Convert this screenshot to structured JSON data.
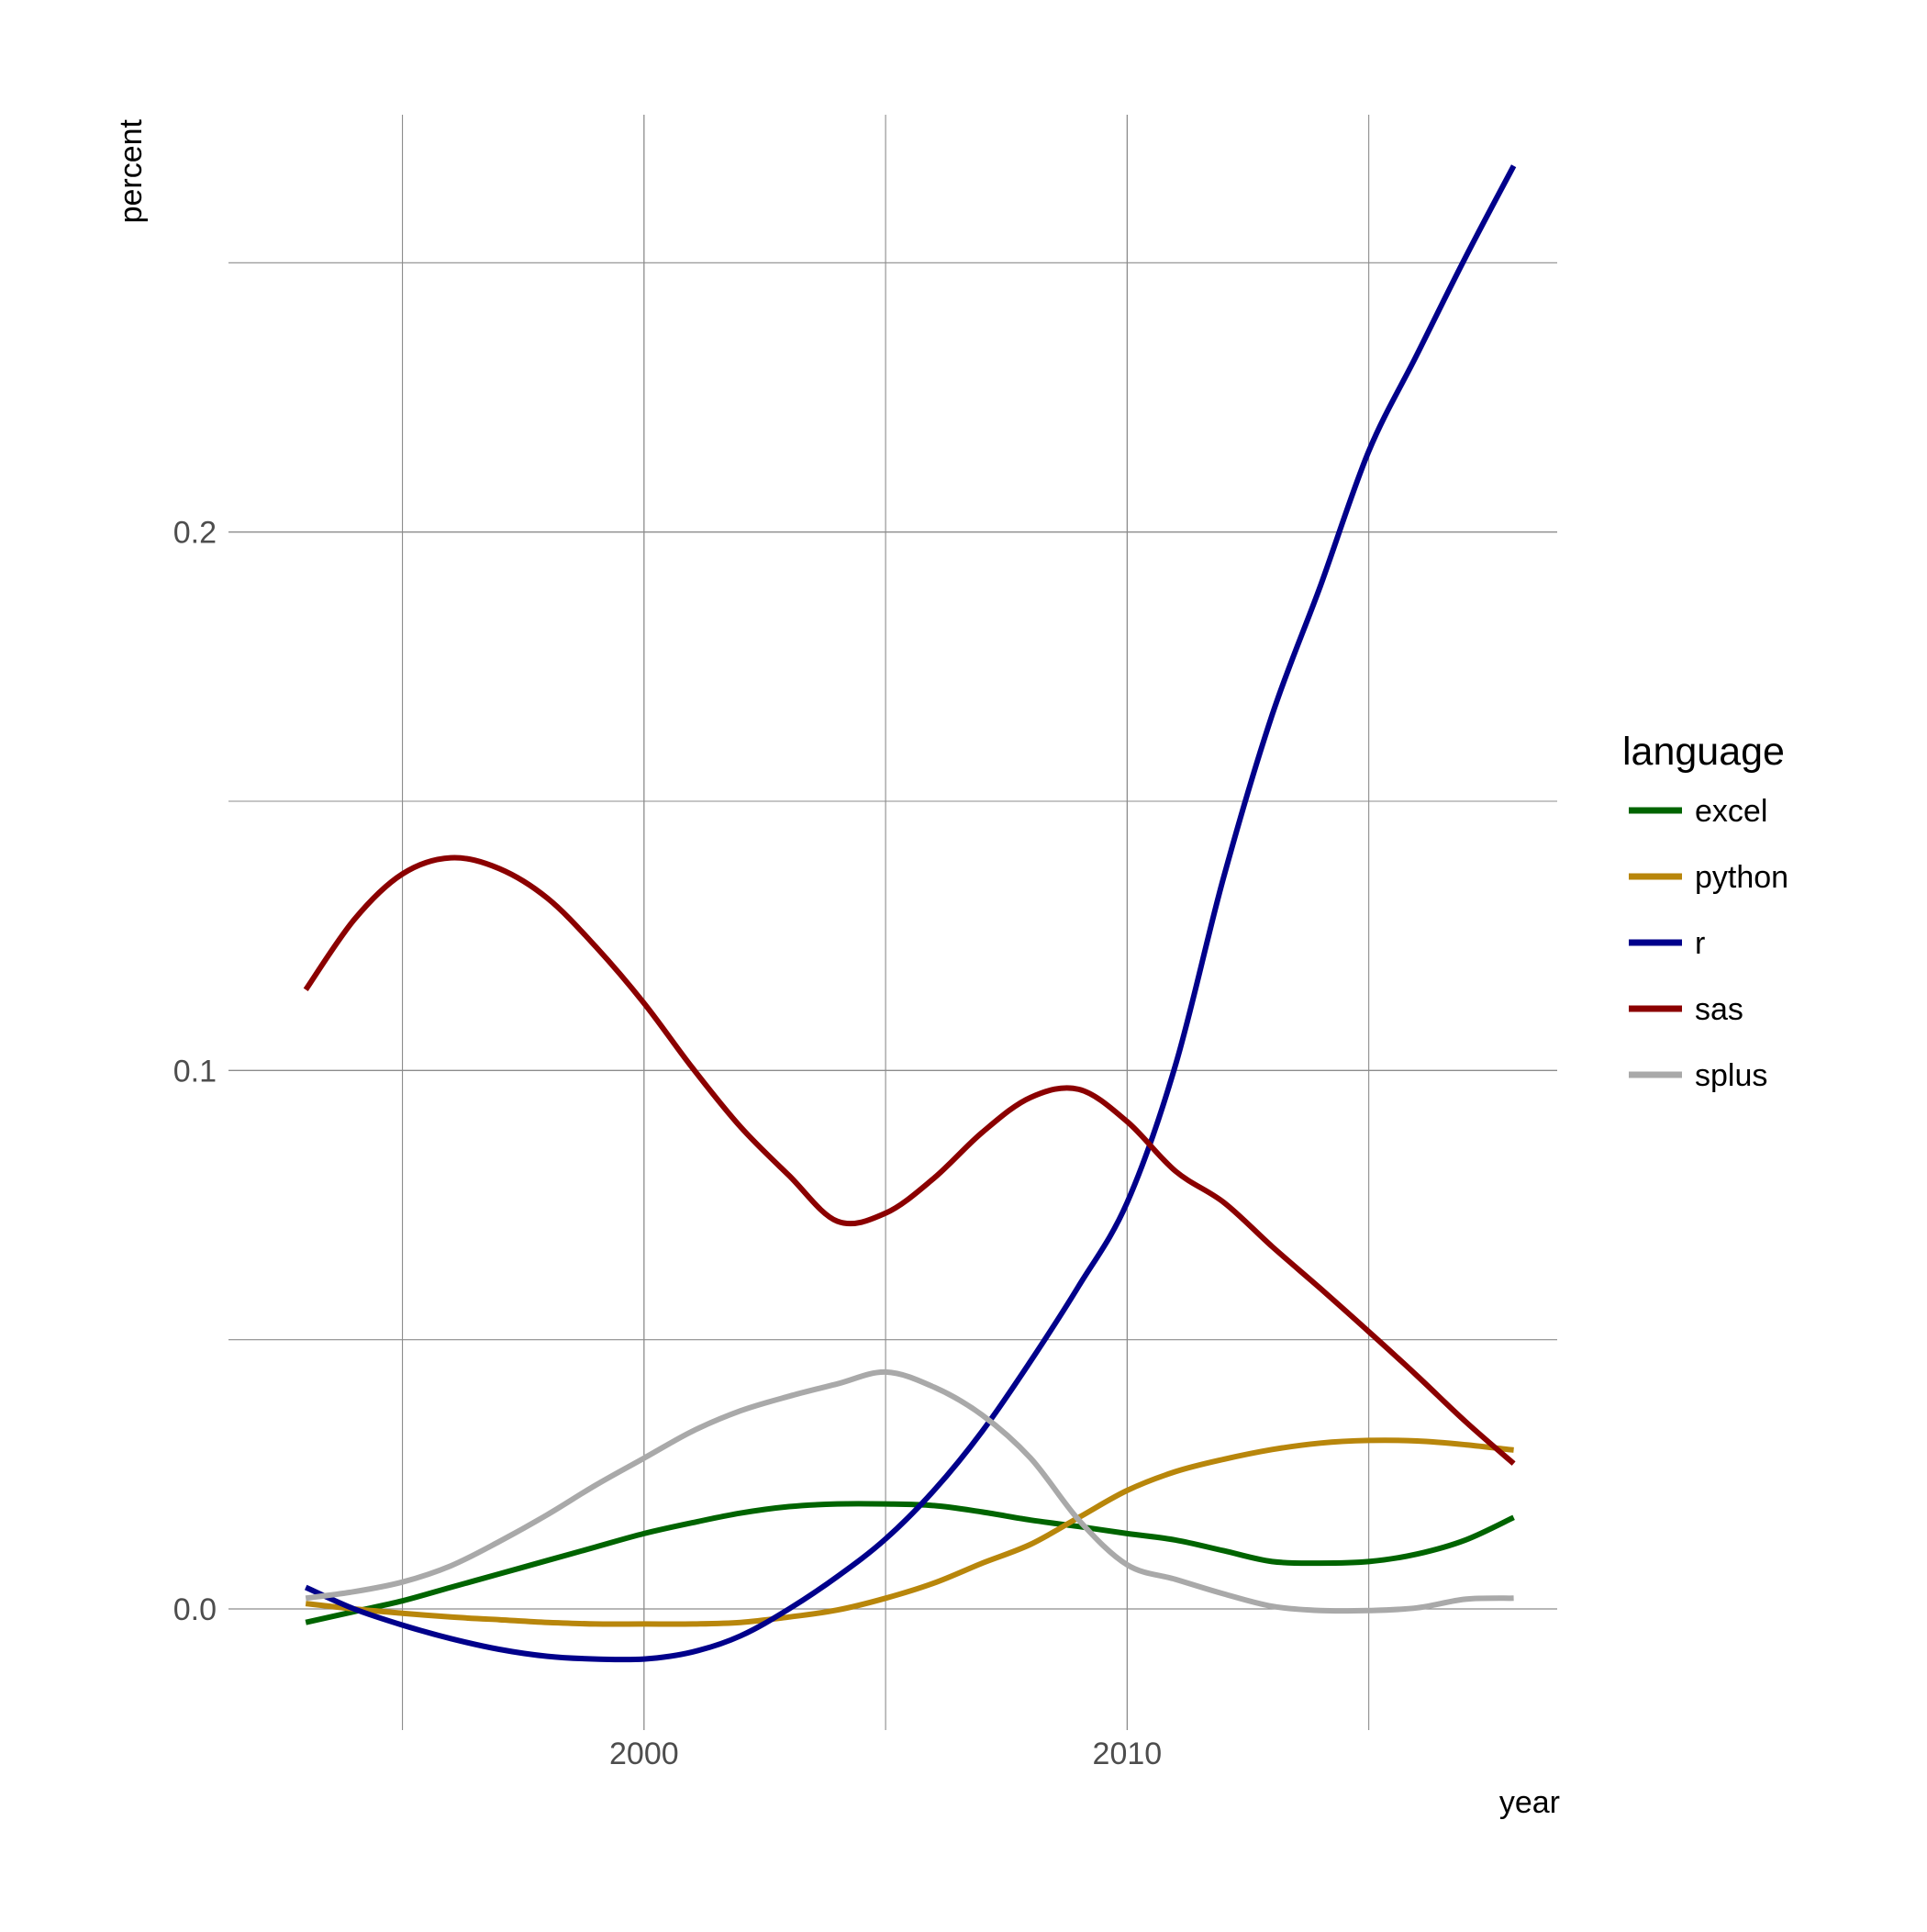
{
  "chart_data": {
    "type": "line",
    "title": "",
    "xlabel": "year",
    "ylabel": "percent",
    "xlim": [
      1991.4,
      2018.9
    ],
    "ylim": [
      -0.0225,
      0.2775
    ],
    "x_ticks": [
      2000,
      2010
    ],
    "x_tick_labels": [
      "2000",
      "2010"
    ],
    "x_minor_ticks": [
      1995,
      2005,
      2015
    ],
    "y_ticks": [
      0.0,
      0.1,
      0.2
    ],
    "y_tick_labels": [
      "0.0",
      "0.1",
      "0.2"
    ],
    "y_minor_ticks": [
      0.05,
      0.15,
      0.25
    ],
    "grid": true,
    "legend": {
      "title": "language",
      "position": "right"
    },
    "x": [
      1993,
      1994,
      1995,
      1996,
      1997,
      1998,
      1999,
      2000,
      2001,
      2002,
      2003,
      2004,
      2005,
      2006,
      2007,
      2008,
      2009,
      2010,
      2011,
      2012,
      2013,
      2014,
      2015,
      2016,
      2017,
      2018
    ],
    "series": [
      {
        "name": "excel",
        "color": "#006400",
        "values": [
          -0.0025,
          -0.0005,
          0.0015,
          0.004,
          0.0065,
          0.009,
          0.0115,
          0.014,
          0.016,
          0.0178,
          0.019,
          0.0195,
          0.0195,
          0.0192,
          0.018,
          0.0165,
          0.0153,
          0.014,
          0.0128,
          0.0108,
          0.0088,
          0.0085,
          0.0088,
          0.0102,
          0.0128,
          0.017
        ]
      },
      {
        "name": "python",
        "color": "#B8860B",
        "values": [
          0.001,
          0.0,
          -0.0008,
          -0.0015,
          -0.002,
          -0.0025,
          -0.0028,
          -0.0028,
          -0.0028,
          -0.0025,
          -0.0015,
          -0.0002,
          0.002,
          0.0048,
          0.0085,
          0.012,
          0.017,
          0.022,
          0.0255,
          0.0278,
          0.0296,
          0.0308,
          0.0313,
          0.0312,
          0.0305,
          0.0295
        ]
      },
      {
        "name": "r",
        "color": "#00008B",
        "values": [
          0.004,
          0.0,
          -0.003,
          -0.0055,
          -0.0075,
          -0.0088,
          -0.0093,
          -0.0093,
          -0.008,
          -0.005,
          0.0,
          0.006,
          0.013,
          0.022,
          0.033,
          0.046,
          0.06,
          0.0755,
          0.101,
          0.136,
          0.166,
          0.19,
          0.215,
          0.233,
          0.251,
          0.268
        ]
      },
      {
        "name": "sas",
        "color": "#8B0000",
        "values": [
          0.115,
          0.128,
          0.1365,
          0.1395,
          0.1375,
          0.132,
          0.123,
          0.1125,
          0.1005,
          0.0895,
          0.0805,
          0.072,
          0.0735,
          0.08,
          0.0885,
          0.095,
          0.0965,
          0.0905,
          0.0813,
          0.0755,
          0.0673,
          0.0595,
          0.0515,
          0.0433,
          0.0348,
          0.027
        ]
      },
      {
        "name": "splus",
        "color": "#A9A9A9",
        "values": [
          0.002,
          0.0032,
          0.005,
          0.008,
          0.0125,
          0.0175,
          0.023,
          0.028,
          0.033,
          0.0368,
          0.0395,
          0.0418,
          0.044,
          0.0412,
          0.036,
          0.028,
          0.0165,
          0.0082,
          0.0055,
          0.0028,
          0.0005,
          -0.0003,
          -0.0003,
          0.0002,
          0.0018,
          0.002
        ]
      }
    ]
  }
}
